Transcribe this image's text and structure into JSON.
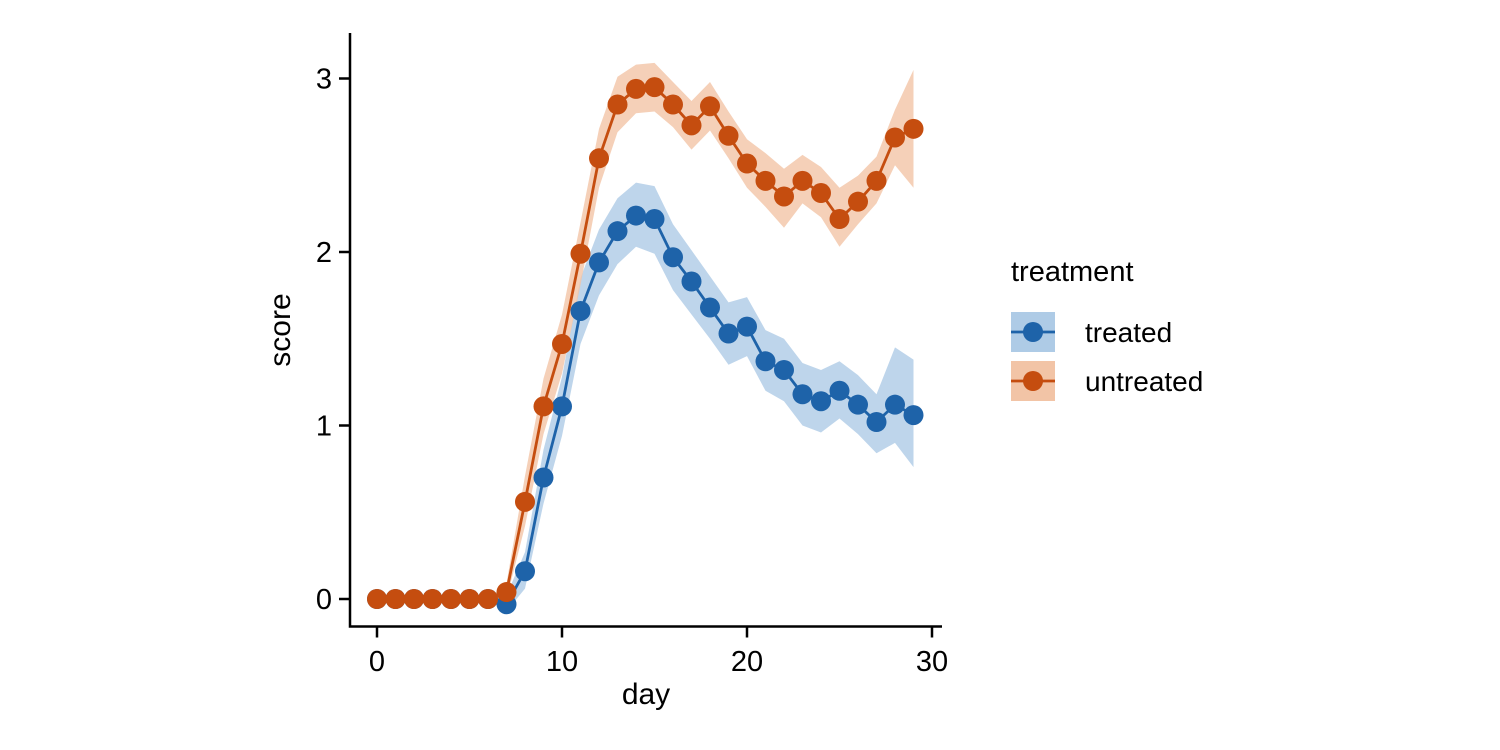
{
  "figure": {
    "background_color": "#ffffff"
  },
  "legend": {
    "title": "treatment",
    "entries": [
      {
        "label": "treated",
        "color": "#1E63A9",
        "band_color": "#AECBE6"
      },
      {
        "label": "untreated",
        "color": "#C54D0F",
        "band_color": "#F2C4A6"
      }
    ]
  },
  "chart_data": {
    "type": "line",
    "title": "",
    "xlabel": "day",
    "ylabel": "score",
    "x_ticks": [
      0,
      10,
      20,
      30
    ],
    "y_ticks": [
      0,
      1,
      2,
      3
    ],
    "xlim": [
      0,
      30
    ],
    "ylim": [
      0,
      3
    ],
    "grid": "off",
    "legend_position": "right",
    "x": [
      0,
      1,
      2,
      3,
      4,
      5,
      6,
      7,
      8,
      9,
      10,
      11,
      12,
      13,
      14,
      15,
      16,
      17,
      18,
      19,
      20,
      21,
      22,
      23,
      24,
      25,
      26,
      27,
      28,
      29
    ],
    "series": [
      {
        "name": "treated",
        "color": "#1E63A9",
        "band_color": "#AECBE6",
        "values": [
          0,
          0,
          0,
          0,
          0,
          0,
          0,
          -0.03,
          0.16,
          0.7,
          1.11,
          1.66,
          1.94,
          2.12,
          2.21,
          2.19,
          1.97,
          1.83,
          1.68,
          1.53,
          1.57,
          1.37,
          1.32,
          1.18,
          1.14,
          1.2,
          1.12,
          1.02,
          1.12,
          1.06
        ],
        "lo": [
          0,
          0,
          0,
          0,
          0,
          0,
          0,
          -0.07,
          0.06,
          0.55,
          0.94,
          1.47,
          1.75,
          1.93,
          2.03,
          1.99,
          1.78,
          1.64,
          1.5,
          1.35,
          1.4,
          1.2,
          1.14,
          1.0,
          0.96,
          1.04,
          0.95,
          0.84,
          0.9,
          0.76
        ],
        "hi": [
          0,
          0,
          0,
          0,
          0,
          0,
          0,
          0.02,
          0.27,
          0.86,
          1.28,
          1.85,
          2.13,
          2.31,
          2.4,
          2.38,
          2.16,
          2.01,
          1.86,
          1.71,
          1.74,
          1.55,
          1.5,
          1.36,
          1.32,
          1.37,
          1.29,
          1.18,
          1.45,
          1.38
        ]
      },
      {
        "name": "untreated",
        "color": "#C54D0F",
        "band_color": "#F2C4A6",
        "values": [
          0,
          0,
          0,
          0,
          0,
          0,
          0,
          0.04,
          0.56,
          1.11,
          1.47,
          1.99,
          2.54,
          2.85,
          2.94,
          2.95,
          2.85,
          2.73,
          2.84,
          2.67,
          2.51,
          2.41,
          2.32,
          2.41,
          2.34,
          2.19,
          2.29,
          2.41,
          2.66,
          2.71
        ],
        "lo": [
          0,
          0,
          0,
          0,
          0,
          0,
          0,
          0.0,
          0.42,
          0.95,
          1.3,
          1.81,
          2.37,
          2.69,
          2.8,
          2.81,
          2.72,
          2.59,
          2.7,
          2.54,
          2.37,
          2.26,
          2.14,
          2.28,
          2.2,
          2.03,
          2.16,
          2.28,
          2.5,
          2.37
        ],
        "hi": [
          0,
          0,
          0,
          0,
          0,
          0,
          0,
          0.09,
          0.71,
          1.27,
          1.64,
          2.17,
          2.71,
          3.01,
          3.08,
          3.09,
          2.98,
          2.87,
          2.98,
          2.81,
          2.65,
          2.57,
          2.48,
          2.56,
          2.49,
          2.37,
          2.44,
          2.55,
          2.82,
          3.05
        ]
      }
    ]
  }
}
